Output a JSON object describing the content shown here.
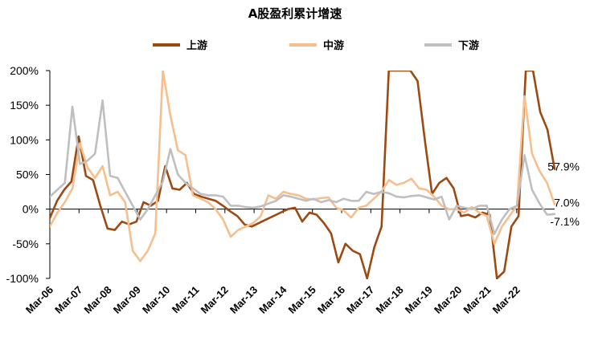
{
  "chart_data": {
    "type": "line",
    "title": "A股盈利累计增速",
    "ylim": [
      -100,
      200
    ],
    "yticks": [
      "-100%",
      "-50%",
      "0%",
      "50%",
      "100%",
      "150%",
      "200%"
    ],
    "ytick_values": [
      -100,
      -50,
      0,
      50,
      100,
      150,
      200
    ],
    "xticks": [
      "Mar-06",
      "Mar-07",
      "Mar-08",
      "Mar-09",
      "Mar-10",
      "Mar-11",
      "Mar-12",
      "Mar-13",
      "Mar-14",
      "Mar-15",
      "Mar-16",
      "Mar-17",
      "Mar-18",
      "Mar-19",
      "Mar-20",
      "Mar-21",
      "Mar-22"
    ],
    "x_start": "Mar-06",
    "x_end": "Mar-22",
    "grid": false,
    "legend_position": "top",
    "series": [
      {
        "name": "上游",
        "color": "#9C4A12",
        "end_label": "57.9%",
        "values": [
          -13,
          12,
          28,
          40,
          105,
          48,
          42,
          5,
          -28,
          -30,
          -18,
          -22,
          -18,
          10,
          5,
          12,
          62,
          30,
          28,
          38,
          22,
          18,
          15,
          12,
          5,
          -3,
          -10,
          -22,
          -25,
          -20,
          -15,
          -10,
          -5,
          0,
          2,
          -18,
          -5,
          -8,
          -20,
          -35,
          -77,
          -50,
          -60,
          -65,
          -100,
          -55,
          -25,
          200,
          200,
          200,
          200,
          185,
          100,
          22,
          38,
          45,
          30,
          -10,
          -8,
          -12,
          -5,
          -8,
          -100,
          -90,
          -25,
          -10,
          200,
          200,
          140,
          115,
          57.9
        ]
      },
      {
        "name": "中游",
        "color": "#F7BE8E",
        "end_label": "7.0%",
        "values": [
          -25,
          -5,
          10,
          30,
          95,
          60,
          45,
          62,
          20,
          25,
          10,
          -60,
          -75,
          -60,
          -35,
          200,
          135,
          85,
          78,
          20,
          15,
          10,
          0,
          -15,
          -40,
          -30,
          -25,
          -20,
          -10,
          20,
          15,
          25,
          22,
          20,
          15,
          14,
          16,
          17,
          2,
          -2,
          -12,
          2,
          5,
          15,
          25,
          42,
          35,
          38,
          44,
          30,
          28,
          18,
          5,
          0,
          0,
          -5,
          3,
          -5,
          -10,
          -50,
          -25,
          -10,
          5,
          163,
          80,
          55,
          38,
          7.0
        ]
      },
      {
        "name": "下游",
        "color": "#BFBFBF",
        "end_label": "-7.1%",
        "values": [
          18,
          28,
          38,
          148,
          65,
          70,
          80,
          157,
          48,
          45,
          25,
          5,
          -15,
          0,
          20,
          40,
          87,
          50,
          38,
          30,
          22,
          20,
          20,
          18,
          5,
          5,
          3,
          2,
          4,
          8,
          12,
          20,
          18,
          15,
          12,
          15,
          10,
          13,
          10,
          15,
          12,
          12,
          25,
          22,
          25,
          23,
          18,
          17,
          19,
          20,
          17,
          14,
          18,
          -15,
          5,
          2,
          0,
          5,
          5,
          -36,
          -15,
          0,
          5,
          78,
          28,
          8,
          -8,
          -7.1
        ]
      }
    ]
  }
}
